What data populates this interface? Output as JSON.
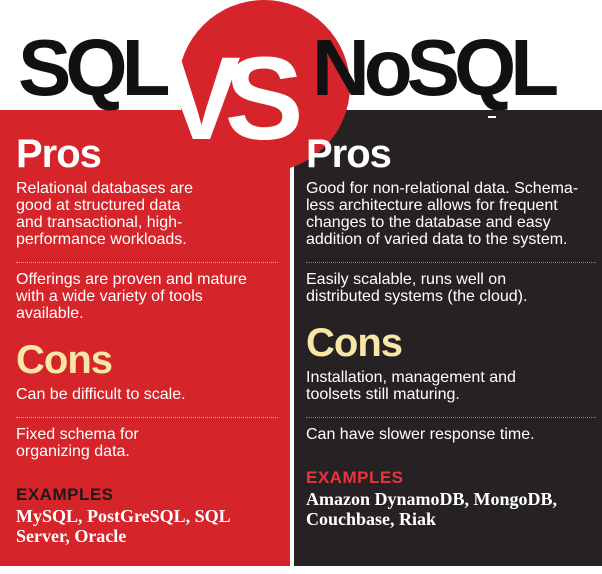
{
  "colors": {
    "sql_panel": "#d6242b",
    "nosql_panel": "#262224",
    "cons_heading": "#f7e6a6",
    "examples_label_nosql": "#e8343a"
  },
  "titles": {
    "left": "SQL",
    "vs": "VS",
    "right": "NoSQL"
  },
  "sql": {
    "pros_heading": "Pros",
    "pros": [
      "Relational databases are good at structured data and transactional, high-performance workloads.",
      "Offerings are proven and mature with a wide variety of tools available."
    ],
    "cons_heading": "Cons",
    "cons": [
      "Can be difficult to scale.",
      "Fixed schema for organizing data."
    ],
    "examples_label": "EXAMPLES",
    "examples": "MySQL, PostGreSQL, SQL Server, Oracle"
  },
  "nosql": {
    "pros_heading": "Pros",
    "pros": [
      "Good for non-relational data. Schema-less architecture allows for frequent changes to the database and easy addition of varied data to the system.",
      "Easily scalable, runs well on distributed systems (the cloud)."
    ],
    "cons_heading": "Cons",
    "cons": [
      "Installation, management and toolsets still maturing.",
      "Can have slower response time."
    ],
    "examples_label": "EXAMPLES",
    "examples": "Amazon DynamoDB, MongoDB, Couchbase, Riak"
  }
}
